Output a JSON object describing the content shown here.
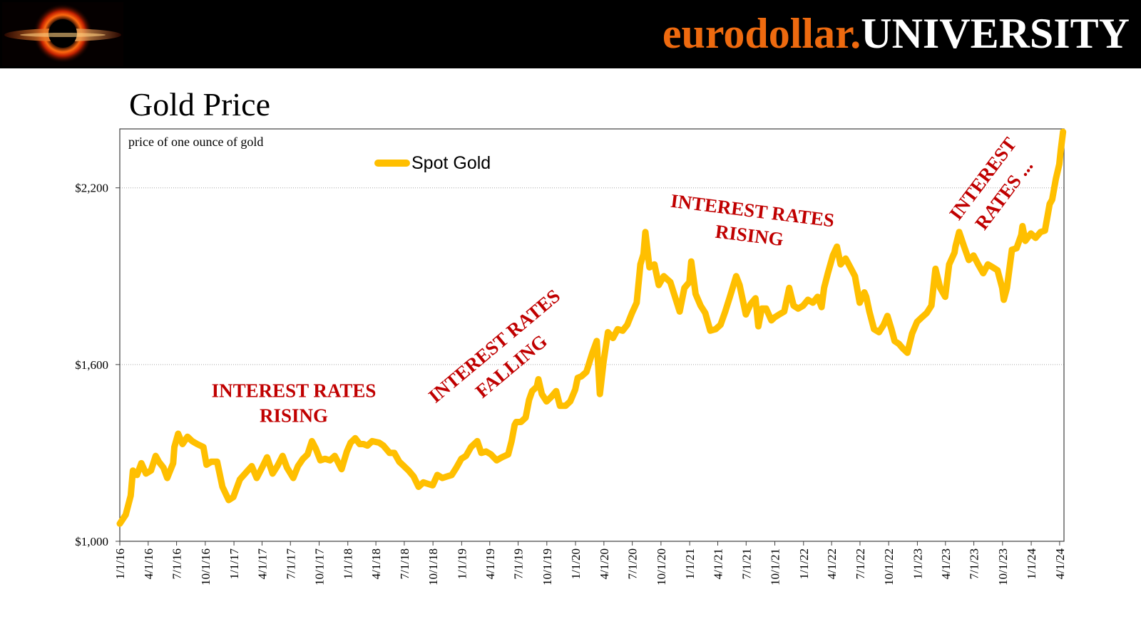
{
  "header": {
    "brand_primary": "eurodollar.",
    "brand_secondary": "UNIVERSITY",
    "logo_icon": "black-hole-logo-icon"
  },
  "page_title": "Gold Price",
  "colors": {
    "banner": "#000000",
    "brand_orange": "#ee6a0f",
    "series": "#ffbf00",
    "annotation": "#c00000",
    "gridline": "#a6a6a6"
  },
  "chart_data": {
    "type": "line",
    "subtitle": "price of one ounce of gold",
    "ylim": [
      1000,
      2400
    ],
    "y_ticks": [
      1000,
      1600,
      2200
    ],
    "y_tick_labels": [
      "$1,000",
      "$1,600",
      "$2,200"
    ],
    "x_tick_labels": [
      "1/1/16",
      "4/1/16",
      "7/1/16",
      "10/1/16",
      "1/1/17",
      "4/1/17",
      "7/1/17",
      "10/1/17",
      "1/1/18",
      "4/1/18",
      "7/1/18",
      "10/1/18",
      "1/1/19",
      "4/1/19",
      "7/1/19",
      "10/1/19",
      "1/1/20",
      "4/1/20",
      "7/1/20",
      "10/1/20",
      "1/1/21",
      "4/1/21",
      "7/1/21",
      "10/1/21",
      "1/1/22",
      "4/1/22",
      "7/1/22",
      "10/1/22",
      "1/1/23",
      "4/1/23",
      "7/1/23",
      "10/1/23",
      "1/1/24",
      "4/1/24"
    ],
    "grid": "horizontal dotted",
    "legend": "top-center",
    "series": [
      {
        "name": "Spot Gold",
        "x": [
          "2016-01-01",
          "2016-01-20",
          "2016-02-05",
          "2016-02-12",
          "2016-02-25",
          "2016-03-10",
          "2016-03-25",
          "2016-04-10",
          "2016-04-25",
          "2016-05-05",
          "2016-05-20",
          "2016-06-01",
          "2016-06-20",
          "2016-06-24",
          "2016-07-06",
          "2016-07-20",
          "2016-08-05",
          "2016-08-20",
          "2016-09-05",
          "2016-09-25",
          "2016-10-05",
          "2016-10-20",
          "2016-11-08",
          "2016-11-25",
          "2016-12-15",
          "2016-12-30",
          "2017-01-20",
          "2017-02-10",
          "2017-02-27",
          "2017-03-15",
          "2017-04-01",
          "2017-04-17",
          "2017-05-05",
          "2017-05-20",
          "2017-06-06",
          "2017-06-20",
          "2017-07-10",
          "2017-07-25",
          "2017-08-10",
          "2017-08-25",
          "2017-09-08",
          "2017-09-20",
          "2017-10-05",
          "2017-10-20",
          "2017-11-05",
          "2017-11-20",
          "2017-12-12",
          "2017-12-29",
          "2018-01-10",
          "2018-01-25",
          "2018-02-08",
          "2018-02-20",
          "2018-03-05",
          "2018-03-20",
          "2018-04-11",
          "2018-04-25",
          "2018-05-15",
          "2018-05-30",
          "2018-06-15",
          "2018-06-30",
          "2018-07-15",
          "2018-07-31",
          "2018-08-16",
          "2018-08-31",
          "2018-09-15",
          "2018-09-30",
          "2018-10-15",
          "2018-10-31",
          "2018-11-15",
          "2018-11-30",
          "2018-12-15",
          "2018-12-31",
          "2019-01-15",
          "2019-01-31",
          "2019-02-20",
          "2019-03-05",
          "2019-03-20",
          "2019-04-05",
          "2019-04-23",
          "2019-05-10",
          "2019-05-30",
          "2019-06-10",
          "2019-06-20",
          "2019-06-25",
          "2019-07-10",
          "2019-07-25",
          "2019-08-05",
          "2019-08-15",
          "2019-08-30",
          "2019-09-04",
          "2019-09-15",
          "2019-09-30",
          "2019-10-15",
          "2019-10-31",
          "2019-11-12",
          "2019-11-30",
          "2019-12-15",
          "2019-12-31",
          "2020-01-08",
          "2020-01-20",
          "2020-02-05",
          "2020-02-24",
          "2020-03-09",
          "2020-03-19",
          "2020-03-31",
          "2020-04-14",
          "2020-04-30",
          "2020-05-15",
          "2020-05-31",
          "2020-06-15",
          "2020-06-30",
          "2020-07-15",
          "2020-07-27",
          "2020-08-06",
          "2020-08-12",
          "2020-08-25",
          "2020-09-10",
          "2020-09-24",
          "2020-10-10",
          "2020-10-31",
          "2020-11-09",
          "2020-11-30",
          "2020-12-15",
          "2020-12-31",
          "2021-01-06",
          "2021-01-20",
          "2021-02-05",
          "2021-02-20",
          "2021-03-08",
          "2021-03-25",
          "2021-04-10",
          "2021-04-25",
          "2021-05-10",
          "2021-05-30",
          "2021-06-10",
          "2021-06-30",
          "2021-07-15",
          "2021-07-31",
          "2021-08-09",
          "2021-08-20",
          "2021-09-03",
          "2021-09-20",
          "2021-09-30",
          "2021-10-15",
          "2021-10-31",
          "2021-11-16",
          "2021-11-30",
          "2021-12-15",
          "2021-12-31",
          "2022-01-15",
          "2022-01-31",
          "2022-02-15",
          "2022-02-28",
          "2022-03-08",
          "2022-03-20",
          "2022-04-05",
          "2022-04-18",
          "2022-04-30",
          "2022-05-16",
          "2022-05-31",
          "2022-06-15",
          "2022-06-30",
          "2022-07-15",
          "2022-07-21",
          "2022-07-31",
          "2022-08-15",
          "2022-08-31",
          "2022-09-15",
          "2022-09-27",
          "2022-10-10",
          "2022-10-20",
          "2022-11-03",
          "2022-11-15",
          "2022-11-30",
          "2022-12-15",
          "2022-12-31",
          "2023-01-15",
          "2023-01-31",
          "2023-02-15",
          "2023-02-28",
          "2023-03-15",
          "2023-03-31",
          "2023-04-13",
          "2023-04-30",
          "2023-05-03",
          "2023-05-15",
          "2023-05-31",
          "2023-06-15",
          "2023-06-30",
          "2023-07-15",
          "2023-07-31",
          "2023-08-15",
          "2023-08-31",
          "2023-09-15",
          "2023-09-30",
          "2023-10-05",
          "2023-10-15",
          "2023-10-31",
          "2023-11-15",
          "2023-11-30",
          "2023-12-04",
          "2023-12-13",
          "2023-12-31",
          "2024-01-15",
          "2024-01-31",
          "2024-02-14",
          "2024-02-29",
          "2024-03-08",
          "2024-03-20",
          "2024-03-31",
          "2024-04-05",
          "2024-04-12"
        ],
        "values": [
          1060,
          1090,
          1155,
          1240,
          1225,
          1265,
          1230,
          1240,
          1290,
          1270,
          1250,
          1215,
          1265,
          1320,
          1365,
          1330,
          1355,
          1340,
          1330,
          1320,
          1260,
          1270,
          1270,
          1185,
          1140,
          1150,
          1210,
          1235,
          1255,
          1215,
          1250,
          1285,
          1230,
          1255,
          1290,
          1250,
          1215,
          1255,
          1280,
          1295,
          1340,
          1315,
          1275,
          1280,
          1275,
          1290,
          1245,
          1305,
          1335,
          1350,
          1330,
          1330,
          1325,
          1340,
          1335,
          1325,
          1300,
          1300,
          1270,
          1255,
          1240,
          1220,
          1185,
          1200,
          1195,
          1190,
          1225,
          1215,
          1220,
          1225,
          1250,
          1280,
          1290,
          1320,
          1340,
          1300,
          1305,
          1295,
          1275,
          1285,
          1295,
          1340,
          1395,
          1405,
          1405,
          1420,
          1480,
          1510,
          1525,
          1550,
          1500,
          1475,
          1490,
          1510,
          1460,
          1460,
          1475,
          1515,
          1555,
          1560,
          1575,
          1640,
          1680,
          1500,
          1610,
          1710,
          1690,
          1720,
          1715,
          1735,
          1775,
          1810,
          1940,
          1975,
          2050,
          1930,
          1940,
          1870,
          1900,
          1880,
          1850,
          1780,
          1860,
          1880,
          1950,
          1840,
          1800,
          1775,
          1715,
          1720,
          1735,
          1780,
          1830,
          1900,
          1870,
          1770,
          1805,
          1825,
          1730,
          1790,
          1790,
          1750,
          1760,
          1770,
          1780,
          1860,
          1800,
          1790,
          1800,
          1820,
          1810,
          1830,
          1795,
          1860,
          1910,
          1970,
          2000,
          1940,
          1960,
          1930,
          1900,
          1810,
          1845,
          1830,
          1780,
          1720,
          1710,
          1735,
          1765,
          1720,
          1680,
          1670,
          1655,
          1640,
          1705,
          1745,
          1760,
          1775,
          1800,
          1925,
          1860,
          1830,
          1940,
          1980,
          2000,
          2050,
          2000,
          1955,
          1970,
          1940,
          1910,
          1940,
          1930,
          1920,
          1860,
          1820,
          1860,
          1990,
          1995,
          2040,
          2070,
          2020,
          2045,
          2030,
          2050,
          2055,
          2145,
          2160,
          2230,
          2280,
          2330,
          2390
        ]
      }
    ],
    "annotations": [
      {
        "lines": [
          "INTEREST RATES",
          "RISING"
        ],
        "rotation": 0
      },
      {
        "lines": [
          "INTEREST RATES",
          "FALLING"
        ],
        "rotation": -40
      },
      {
        "lines": [
          "INTEREST RATES",
          "RISING"
        ],
        "rotation": 7
      },
      {
        "lines": [
          "INTEREST",
          "RATES ..."
        ],
        "rotation": -53
      }
    ]
  }
}
